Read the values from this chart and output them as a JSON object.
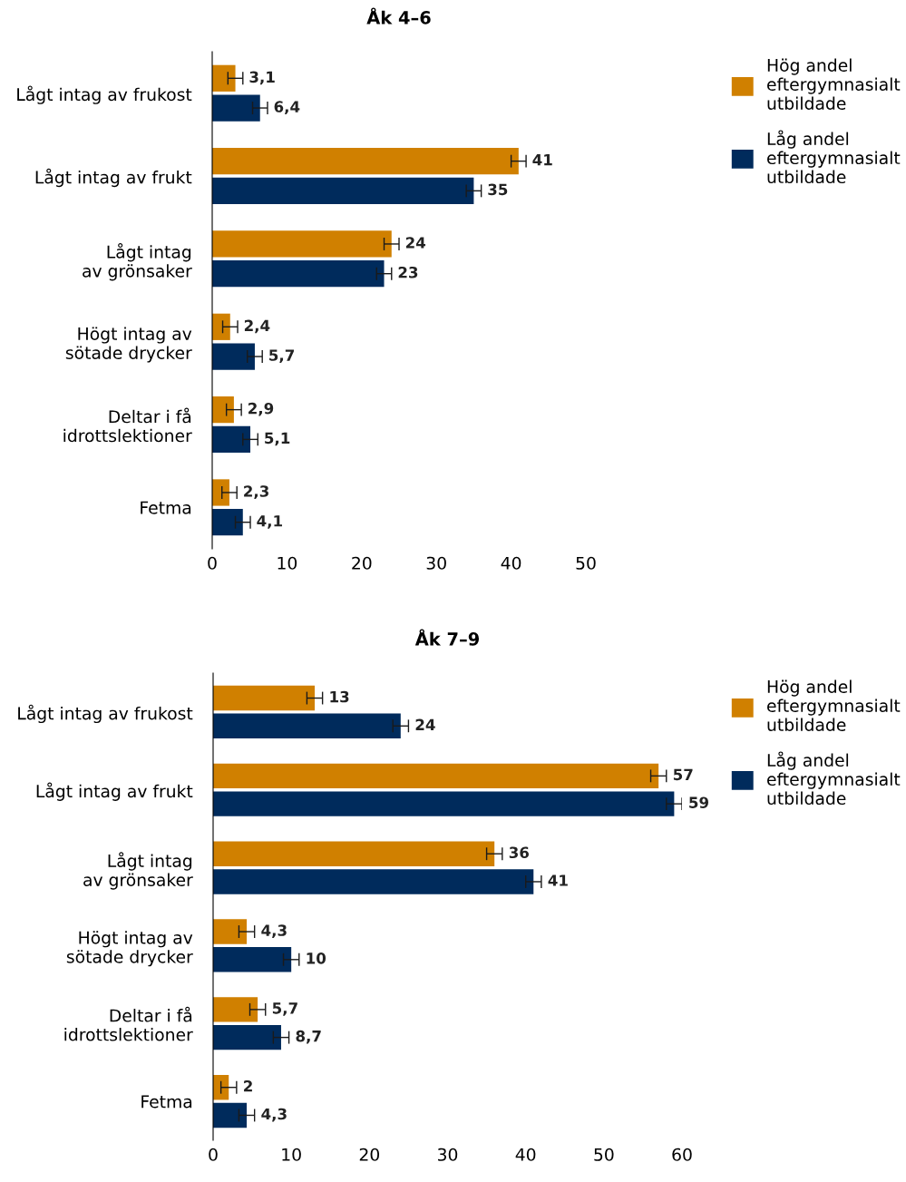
{
  "chart_data": [
    {
      "type": "bar",
      "orientation": "horizontal",
      "title": "Åk 4–6",
      "categories": [
        "Lågt intag av frukost",
        "Lågt intag av frukt",
        "Lågt intag\nav grönsaker",
        "Högt intag av\nsötade drycker",
        "Deltar i få\nidrottslektioner",
        "Fetma"
      ],
      "series": [
        {
          "name": "Hög andel\neftergymnasialt\nutbildade",
          "color": "#d08000",
          "values": [
            3.1,
            41,
            24,
            2.4,
            2.9,
            2.3
          ],
          "errors": [
            1,
            1,
            1,
            1,
            1,
            1
          ],
          "value_labels": [
            "3,1",
            "41",
            "24",
            "2,4",
            "2,9",
            "2,3"
          ]
        },
        {
          "name": "Låg andel\neftergymnasialt\nutbildade",
          "color": "#002b5c",
          "values": [
            6.4,
            35,
            23,
            5.7,
            5.1,
            4.1
          ],
          "errors": [
            1,
            1,
            1,
            1,
            1,
            1
          ],
          "value_labels": [
            "6,4",
            "35",
            "23",
            "5,7",
            "5,1",
            "4,1"
          ]
        }
      ],
      "xlim": [
        0,
        50
      ],
      "xticks": [
        0,
        10,
        20,
        30,
        40,
        50
      ],
      "grid": false,
      "legend": "top right"
    },
    {
      "type": "bar",
      "orientation": "horizontal",
      "title": "Åk 7–9",
      "categories": [
        "Lågt intag av frukost",
        "Lågt intag av frukt",
        "Lågt intag\nav grönsaker",
        "Högt intag av\nsötade drycker",
        "Deltar i få\nidrottslektioner",
        "Fetma"
      ],
      "series": [
        {
          "name": "Hög andel\neftergymnasialt\nutbildade",
          "color": "#d08000",
          "values": [
            13,
            57,
            36,
            4.3,
            5.7,
            2
          ],
          "errors": [
            1,
            1,
            1,
            1,
            1,
            1
          ],
          "value_labels": [
            "13",
            "57",
            "36",
            "4,3",
            "5,7",
            "2"
          ]
        },
        {
          "name": "Låg andel\neftergymnasialt\nutbildade",
          "color": "#002b5c",
          "values": [
            24,
            59,
            41,
            10,
            8.7,
            4.3
          ],
          "errors": [
            1,
            1,
            1,
            1,
            1,
            1
          ],
          "value_labels": [
            "24",
            "59",
            "41",
            "10",
            "8,7",
            "4,3"
          ]
        }
      ],
      "xlim": [
        0,
        60
      ],
      "xticks": [
        0,
        10,
        20,
        30,
        40,
        50,
        60
      ],
      "grid": false,
      "legend": "top right"
    }
  ]
}
